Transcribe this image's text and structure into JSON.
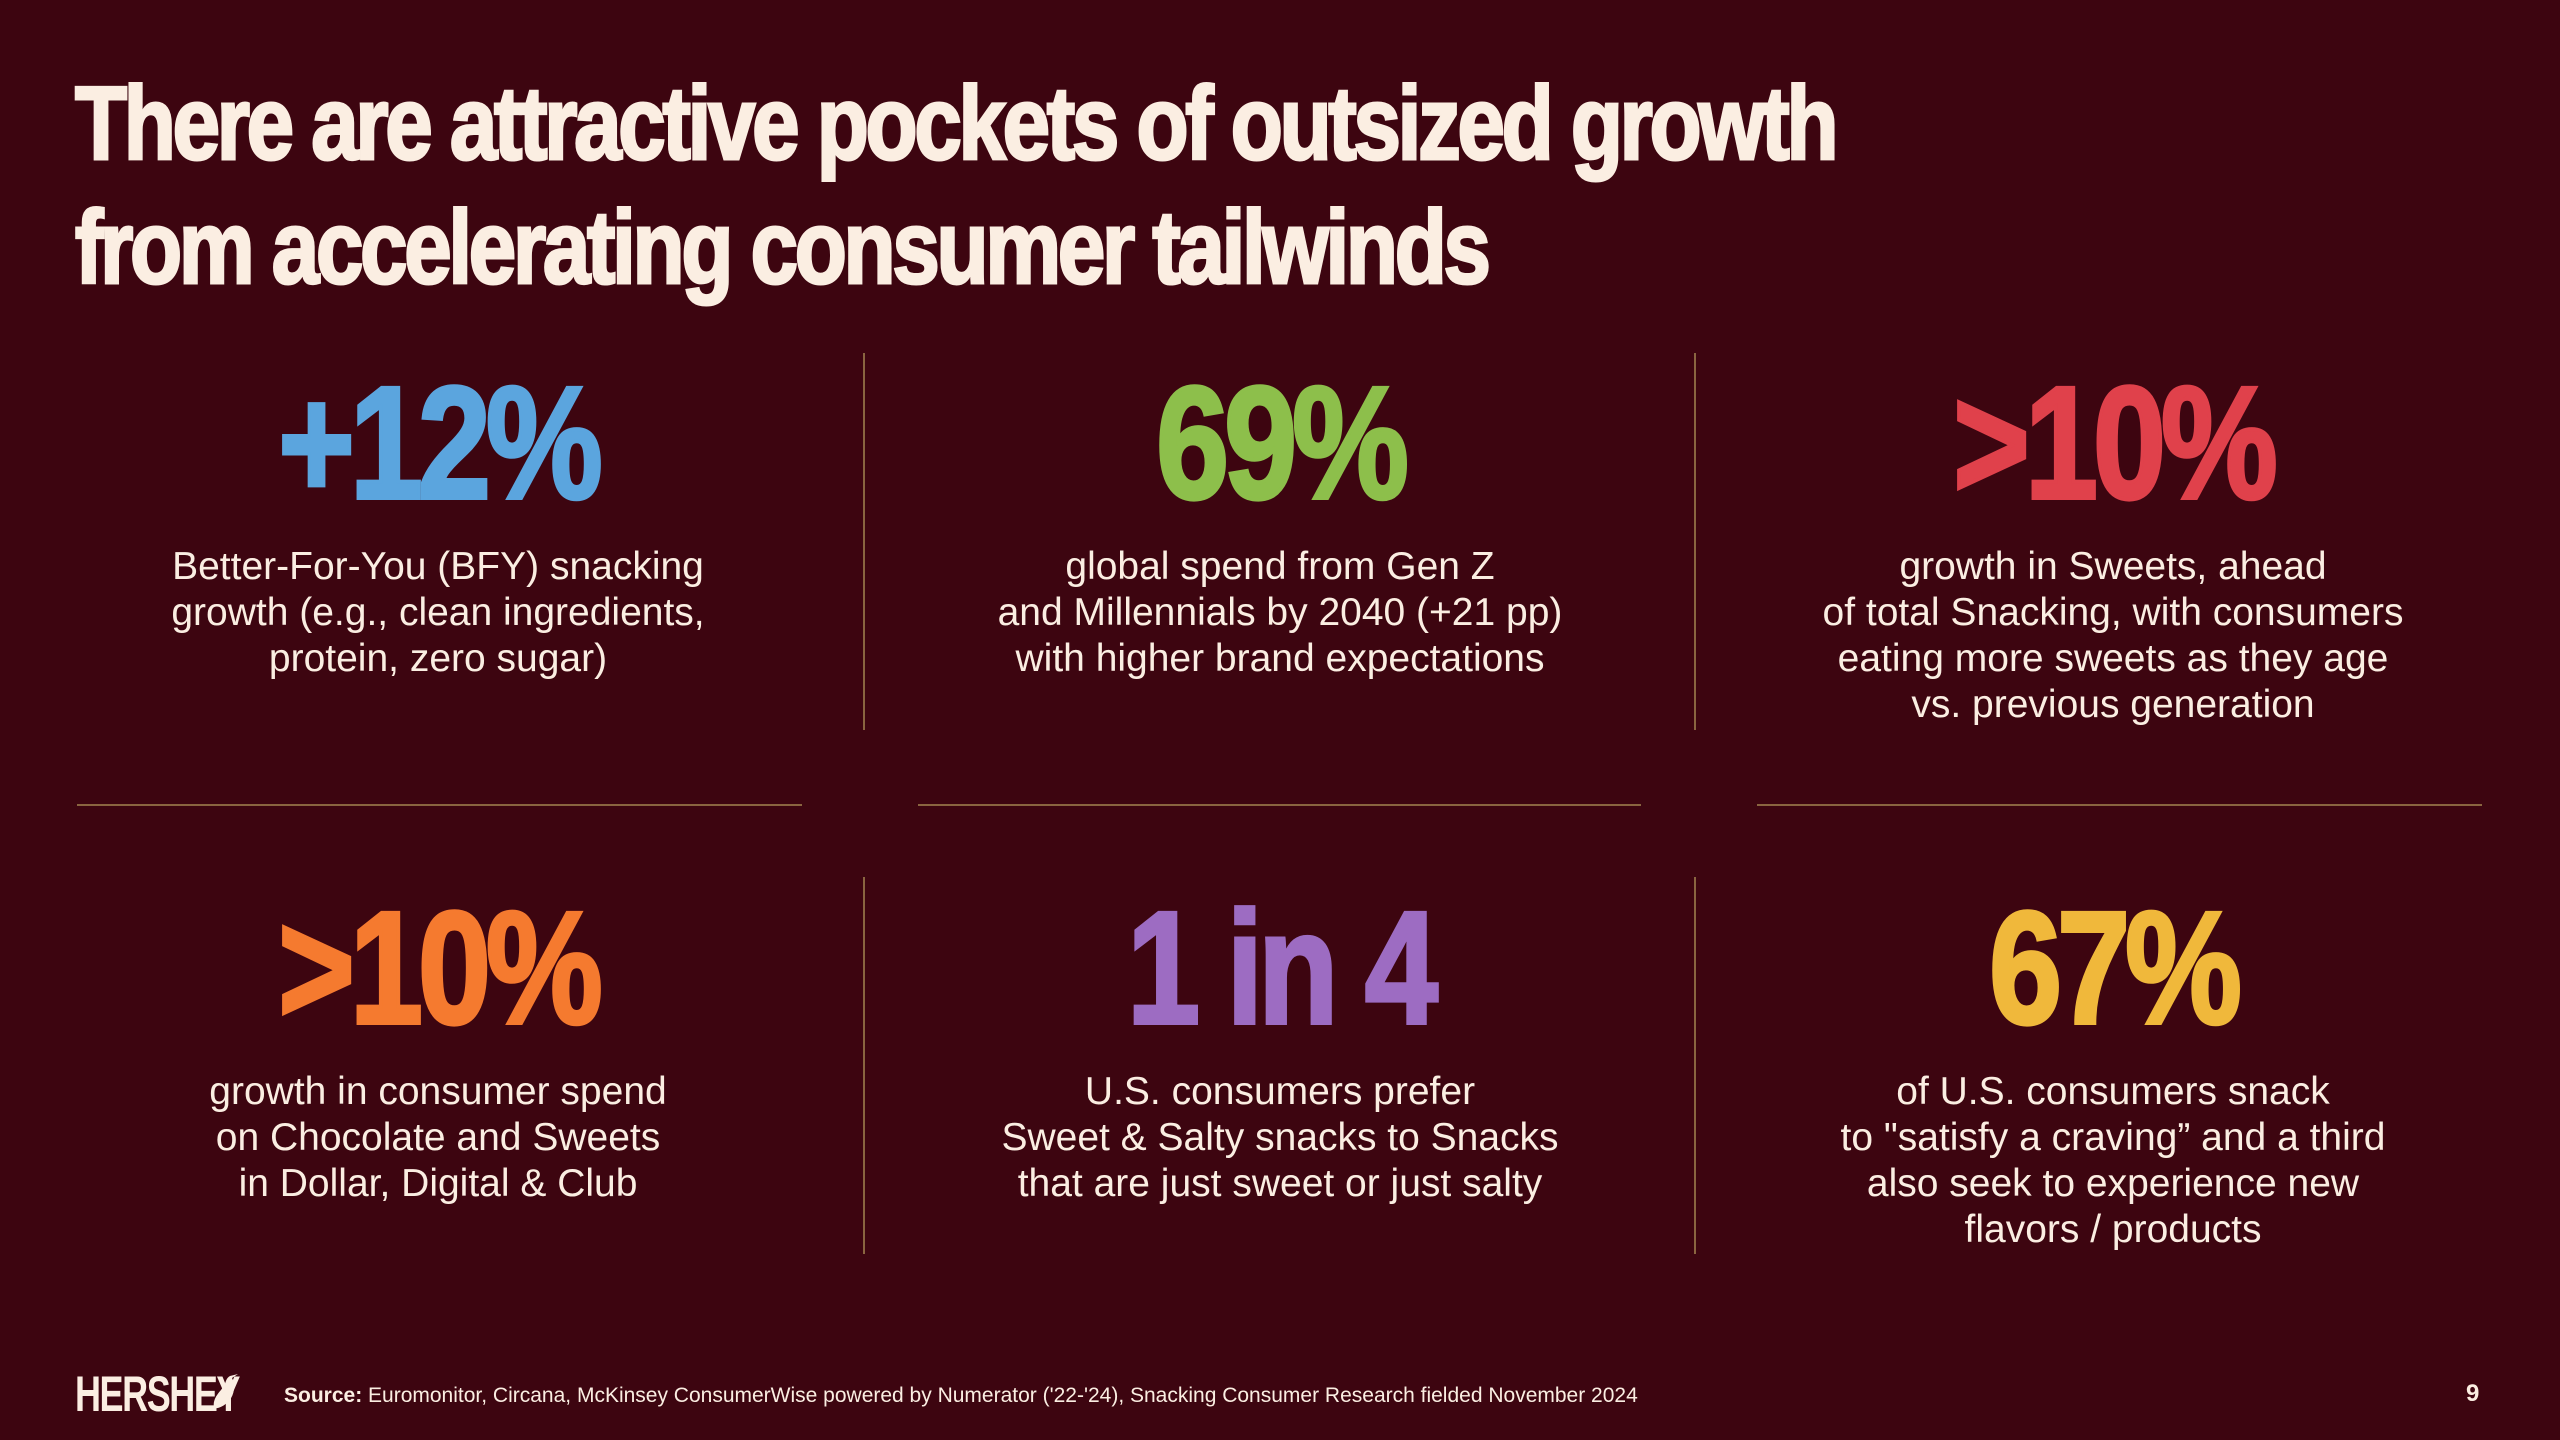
{
  "title": {
    "line1": "There are attractive pockets of outsized growth",
    "line2": "from accelerating consumer tailwinds"
  },
  "stats": [
    {
      "value": "+12%",
      "color": "#5ba5de",
      "description": "Better-For-You (BFY) snacking\ngrowth (e.g., clean ingredients,\nprotein, zero sugar)"
    },
    {
      "value": "69%",
      "color": "#8dbf4b",
      "description": "global spend from Gen Z\nand Millennials by 2040 (+21 pp)\nwith higher brand expectations"
    },
    {
      "value": ">10%",
      "color": "#e0414b",
      "description": "growth in Sweets, ahead\nof total Snacking, with consumers\neating more sweets as they age\nvs. previous generation"
    },
    {
      "value": ">10%",
      "color": "#f57a2f",
      "description": "growth in consumer spend\non Chocolate and Sweets\nin Dollar, Digital & Club"
    },
    {
      "value": "1 in 4",
      "color": "#9d6cc2",
      "description": "U.S. consumers prefer\nSweet & Salty snacks to Snacks\nthat are just sweet or just salty"
    },
    {
      "value": "67%",
      "color": "#f0b83b",
      "description": "of U.S. consumers snack\nto \"satisfy a craving” and a third\nalso seek to experience new\nflavors / products"
    }
  ],
  "footer": {
    "logo": "HERSHEY",
    "source_label": "Source:",
    "source_text": " Euromonitor, Circana, McKinsey ConsumerWise powered by Numerator ('22-'24), Snacking Consumer Research fielded November 2024",
    "page_number": "9"
  }
}
